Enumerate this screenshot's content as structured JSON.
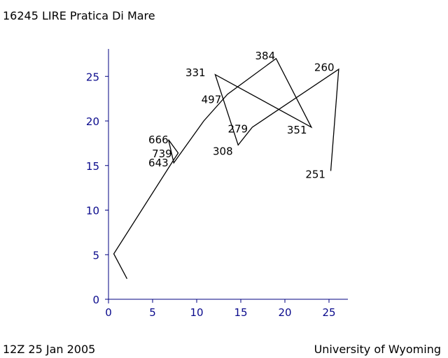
{
  "header": {
    "title": "16245 LIRE Pratica Di Mare"
  },
  "footer": {
    "left": "12Z 25 Jan 2005",
    "right": "University of Wyoming"
  },
  "colors": {
    "axis": "#000080",
    "line": "#000000",
    "text": "#000000"
  },
  "chart_data": {
    "type": "line",
    "title": "16245 LIRE Pratica Di Mare",
    "xlabel": "",
    "ylabel": "",
    "xlim": [
      0,
      27
    ],
    "ylim": [
      0,
      28
    ],
    "xticks": [
      0,
      5,
      10,
      15,
      20,
      25
    ],
    "yticks": [
      0,
      5,
      10,
      15,
      20,
      25
    ],
    "grid": false,
    "series": [
      {
        "points": [
          {
            "x": 2.1,
            "y": 2.3
          },
          {
            "x": 0.6,
            "y": 5.1
          },
          {
            "x": 7.3,
            "y": 15.5
          },
          {
            "x": 7.9,
            "y": 16.4
          },
          {
            "x": 6.8,
            "y": 17.9
          },
          {
            "x": 7.4,
            "y": 15.3
          },
          {
            "x": 10.8,
            "y": 20.0
          },
          {
            "x": 13.5,
            "y": 23.0
          },
          {
            "x": 19.0,
            "y": 27.0
          },
          {
            "x": 23.0,
            "y": 19.3
          },
          {
            "x": 12.1,
            "y": 25.2
          },
          {
            "x": 14.7,
            "y": 17.3
          },
          {
            "x": 16.3,
            "y": 19.3
          },
          {
            "x": 26.1,
            "y": 25.8
          },
          {
            "x": 25.2,
            "y": 14.4
          }
        ]
      }
    ],
    "labels": [
      {
        "text": "666",
        "x": 6.8,
        "y": 17.9,
        "anchor": "end"
      },
      {
        "text": "739",
        "x": 7.2,
        "y": 16.3,
        "anchor": "end"
      },
      {
        "text": "643",
        "x": 6.8,
        "y": 15.3,
        "anchor": "end"
      },
      {
        "text": "497",
        "x": 12.8,
        "y": 22.4,
        "anchor": "end"
      },
      {
        "text": "331",
        "x": 11.0,
        "y": 25.4,
        "anchor": "end"
      },
      {
        "text": "384",
        "x": 18.9,
        "y": 27.3,
        "anchor": "end"
      },
      {
        "text": "260",
        "x": 25.6,
        "y": 26.0,
        "anchor": "end"
      },
      {
        "text": "279",
        "x": 15.8,
        "y": 19.1,
        "anchor": "end"
      },
      {
        "text": "308",
        "x": 14.1,
        "y": 16.6,
        "anchor": "end"
      },
      {
        "text": "351",
        "x": 22.5,
        "y": 19.0,
        "anchor": "end"
      },
      {
        "text": "251",
        "x": 24.6,
        "y": 14.0,
        "anchor": "end"
      }
    ]
  }
}
